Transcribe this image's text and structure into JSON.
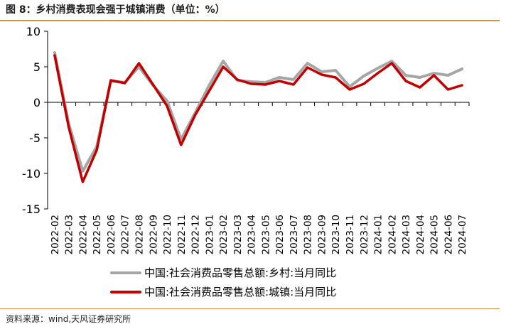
{
  "figure": {
    "title": "图 8：乡村消费表现会强于城镇消费（单位：%）",
    "source": "资料来源：wind,天风证券研究所"
  },
  "colors": {
    "rural": "#a6a6a6",
    "urban": "#c00000",
    "axis": "#000000",
    "rule": "#c89a3c"
  },
  "chart_data": {
    "type": "line",
    "title": "",
    "xlabel": "",
    "ylabel": "",
    "ylim": [
      -15,
      10
    ],
    "yticks": [
      10,
      5,
      0,
      -5,
      -10,
      -15
    ],
    "grid": false,
    "legend_position": "bottom",
    "categories": [
      "2022-02",
      "2022-03",
      "2022-04",
      "2022-05",
      "2022-06",
      "2022-07",
      "2022-08",
      "2022-09",
      "2022-10",
      "2022-11",
      "2022-12",
      "2023-01",
      "2023-02",
      "2023-03",
      "2023-04",
      "2023-05",
      "2023-06",
      "2023-07",
      "2023-08",
      "2023-09",
      "2023-10",
      "2023-11",
      "2023-12",
      "2024-01",
      "2024-02",
      "2024-03",
      "2024-04",
      "2024-05",
      "2024-06",
      "2024-07"
    ],
    "series": [
      {
        "name": "中国:社会消费品零售总额:乡村:当月同比",
        "color": "#a6a6a6",
        "values": [
          7.0,
          -3.0,
          -9.7,
          -6.2,
          3.0,
          2.8,
          5.0,
          2.4,
          0.2,
          -5.2,
          -1.5,
          2.4,
          5.8,
          3.1,
          2.9,
          2.8,
          3.5,
          3.2,
          5.5,
          4.3,
          4.5,
          2.2,
          3.7,
          4.8,
          5.8,
          3.8,
          3.5,
          4.1,
          3.8,
          4.7
        ]
      },
      {
        "name": "中国:社会消费品零售总额:城镇:当月同比",
        "color": "#c00000",
        "values": [
          6.6,
          -3.5,
          -11.2,
          -6.7,
          3.1,
          2.7,
          5.5,
          2.5,
          -0.5,
          -6.0,
          -1.8,
          1.6,
          5.0,
          3.2,
          2.6,
          2.5,
          3.0,
          2.5,
          4.9,
          3.9,
          3.5,
          1.8,
          2.6,
          4.1,
          5.5,
          3.0,
          2.1,
          3.8,
          1.8,
          2.4
        ]
      }
    ]
  }
}
